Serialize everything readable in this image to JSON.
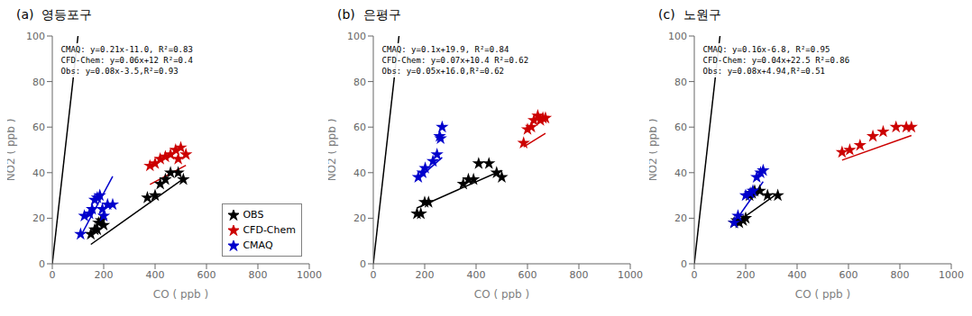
{
  "chart_data": [
    {
      "type": "scatter",
      "title": "(a)  영등포구",
      "xlabel": "CO ( ppb )",
      "ylabel": "NO2 ( ppb )",
      "xlim": [
        0,
        1000
      ],
      "ylim": [
        0,
        100
      ],
      "xticks": [
        0,
        200,
        400,
        600,
        800,
        1000
      ],
      "yticks": [
        0,
        20,
        40,
        60,
        80,
        100
      ],
      "annotation": "CMAQ: y=0.21x-11.0, R²=0.83\nCFD-Chem: y=0.06x+12 R²=0.4\nObs: y=0.08x-3.5,R²=0.93",
      "marker": "star",
      "grid": false,
      "legend": "lower right",
      "series": [
        {
          "name": "OBS",
          "color": "#000000",
          "x": [
            150,
            165,
            175,
            180,
            190,
            200,
            370,
            400,
            420,
            440,
            460,
            490,
            510
          ],
          "values": [
            13,
            15,
            15,
            18,
            19,
            17,
            29,
            30,
            35,
            37,
            40,
            40,
            37
          ]
        },
        {
          "name": "CFD-Chem",
          "color": "#cc0000",
          "x": [
            380,
            400,
            420,
            440,
            460,
            480,
            490,
            500,
            520
          ],
          "values": [
            43,
            44,
            46,
            47,
            48,
            50,
            46,
            51,
            48
          ]
        },
        {
          "name": "CMAQ",
          "color": "#0000cc",
          "x": [
            110,
            125,
            145,
            155,
            165,
            175,
            185,
            195,
            200,
            215,
            235
          ],
          "values": [
            13,
            21,
            22,
            24,
            28,
            29,
            30,
            24,
            21,
            26,
            26
          ]
        },
        {
          "type": "line",
          "color": "#000000",
          "x": [
            150,
            510
          ],
          "values": [
            8.5,
            37.3
          ]
        },
        {
          "type": "line",
          "color": "#cc0000",
          "x": [
            380,
            520
          ],
          "values": [
            34.8,
            43.2
          ]
        },
        {
          "type": "line",
          "color": "#0000cc",
          "x": [
            110,
            235
          ],
          "values": [
            12.1,
            38.35
          ]
        },
        {
          "type": "line",
          "color": "#000000",
          "x": [
            0,
            100
          ],
          "values": [
            0,
            100
          ]
        }
      ]
    },
    {
      "type": "scatter",
      "title": "(b)  은평구",
      "xlabel": "CO ( ppb )",
      "ylabel": "NO2 ( ppb )",
      "xlim": [
        0,
        1000
      ],
      "ylim": [
        0,
        100
      ],
      "xticks": [
        0,
        200,
        400,
        600,
        800,
        1000
      ],
      "yticks": [
        0,
        20,
        40,
        60,
        80,
        100
      ],
      "annotation": "CMAQ: y=0.1x+19.9, R²=0.84\nCFD-Chem: y=0.07x+10.4 R²=0.62\nObs: y=0.05x+16.0,R²=0.62",
      "marker": "star",
      "grid": false,
      "series": [
        {
          "name": "OBS",
          "color": "#000000",
          "x": [
            170,
            185,
            200,
            215,
            350,
            370,
            390,
            410,
            450,
            480,
            500
          ],
          "values": [
            22,
            22,
            27,
            27,
            35,
            37,
            37,
            44,
            44,
            40,
            38
          ]
        },
        {
          "name": "CFD-Chem",
          "color": "#cc0000",
          "x": [
            585,
            600,
            615,
            625,
            640,
            650,
            660,
            670
          ],
          "values": [
            53,
            59,
            60,
            63,
            65,
            63,
            64,
            64
          ]
        },
        {
          "name": "CMAQ",
          "color": "#0000cc",
          "x": [
            175,
            192,
            202,
            232,
            248,
            258,
            262,
            268
          ],
          "values": [
            38,
            40,
            42,
            45,
            48,
            56,
            55,
            60
          ]
        },
        {
          "type": "line",
          "color": "#000000",
          "x": [
            170,
            500
          ],
          "values": [
            24.5,
            41
          ]
        },
        {
          "type": "line",
          "color": "#cc0000",
          "x": [
            585,
            670
          ],
          "values": [
            51.35,
            57.3
          ]
        },
        {
          "type": "line",
          "color": "#0000cc",
          "x": [
            175,
            268
          ],
          "values": [
            37.4,
            46.7
          ]
        },
        {
          "type": "line",
          "color": "#000000",
          "x": [
            0,
            100
          ],
          "values": [
            0,
            100
          ]
        }
      ]
    },
    {
      "type": "scatter",
      "title": "(c)  노원구",
      "xlabel": "CO ( ppb )",
      "ylabel": "NO2 ( ppb )",
      "xlim": [
        0,
        1000
      ],
      "ylim": [
        0,
        100
      ],
      "xticks": [
        0,
        200,
        400,
        600,
        800,
        1000
      ],
      "yticks": [
        0,
        20,
        40,
        60,
        80,
        100
      ],
      "annotation": "CMAQ: y=0.16x-6.8, R²=0.95\nCFD-Chem: y=0.04x+22.5 R²=0.86\nObs: y=0.08x+4.94,R²=0.51",
      "marker": "star",
      "grid": false,
      "series": [
        {
          "name": "OBS",
          "color": "#000000",
          "x": [
            155,
            165,
            175,
            190,
            200,
            215,
            225,
            235,
            255,
            285,
            325
          ],
          "values": [
            18,
            19,
            18,
            19,
            20,
            30,
            31,
            32,
            32,
            30,
            30
          ]
        },
        {
          "name": "CFD-Chem",
          "color": "#cc0000",
          "x": [
            575,
            605,
            645,
            695,
            735,
            785,
            825,
            845
          ],
          "values": [
            49,
            50,
            52,
            56,
            58,
            60,
            60,
            60
          ]
        },
        {
          "name": "CMAQ",
          "color": "#0000cc",
          "x": [
            155,
            170,
            200,
            218,
            228,
            243,
            258,
            268
          ],
          "values": [
            18,
            21,
            30,
            31,
            32,
            38,
            40,
            41
          ]
        },
        {
          "type": "line",
          "color": "#000000",
          "x": [
            155,
            325
          ],
          "values": [
            17.34,
            30.94
          ]
        },
        {
          "type": "line",
          "color": "#cc0000",
          "x": [
            575,
            845
          ],
          "values": [
            45.5,
            56.3
          ]
        },
        {
          "type": "line",
          "color": "#0000cc",
          "x": [
            155,
            268
          ],
          "values": [
            18,
            36.08
          ]
        },
        {
          "type": "line",
          "color": "#000000",
          "x": [
            0,
            100
          ],
          "values": [
            0,
            100
          ]
        }
      ]
    }
  ]
}
